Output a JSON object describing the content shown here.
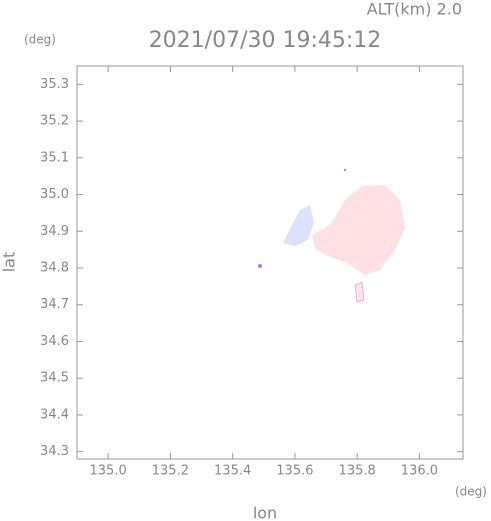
{
  "chart_data": {
    "type": "map",
    "title": "2021/07/30 19:45:12",
    "subtitle": "ALT(km) 2.0",
    "x_label": "lon",
    "y_label": "lat",
    "x_unit": "(deg)",
    "y_unit": "(deg)",
    "xlim": [
      134.9,
      136.14
    ],
    "ylim": [
      34.28,
      35.35
    ],
    "xticks": [
      {
        "value": 135.0,
        "label": "135.0"
      },
      135.2,
      135.4,
      135.6,
      135.8,
      {
        "value": 136.0,
        "label": "136.0"
      }
    ],
    "yticks": [
      34.3,
      34.4,
      34.5,
      34.6,
      34.7,
      34.8,
      34.9,
      {
        "value": 35.0,
        "label": "35.0"
      },
      35.1,
      35.2,
      35.3
    ]
  }
}
